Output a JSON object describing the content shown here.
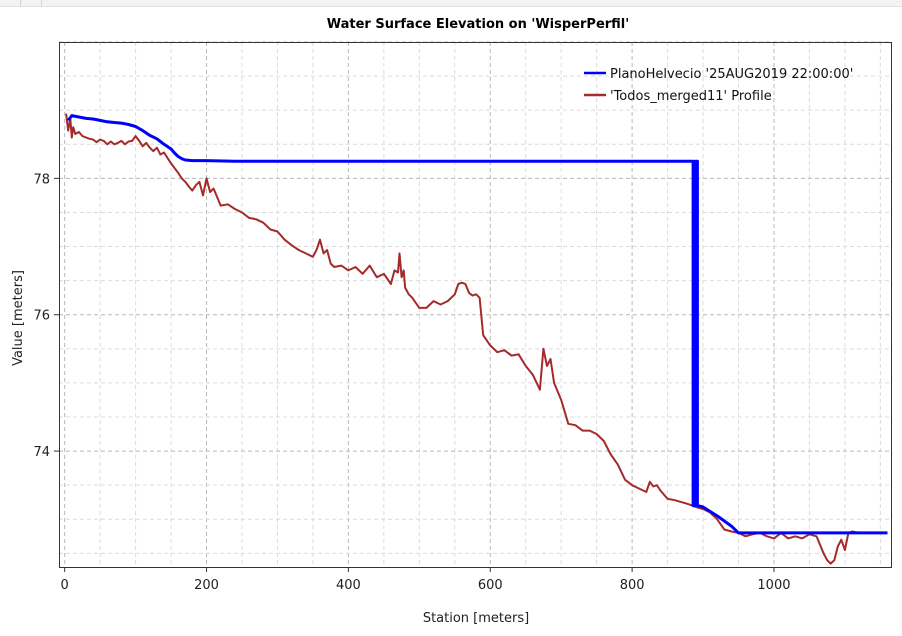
{
  "chart_data": {
    "type": "line",
    "title": "Water Surface Elevation on 'WisperPerfil'",
    "xlabel": "Station [meters]",
    "ylabel": "Value [meters]",
    "xlim": [
      -8,
      1165
    ],
    "ylim": [
      72.3,
      80.0
    ],
    "xticks": [
      0,
      200,
      400,
      600,
      800,
      1000
    ],
    "yticks": [
      74,
      76,
      78
    ],
    "grid": true,
    "legend_position": "top-right",
    "series": [
      {
        "name": "PlanoHelvecio '25AUG2019 22:00:00'",
        "color": "#0000ff",
        "x": [
          5,
          10,
          20,
          30,
          40,
          50,
          60,
          70,
          80,
          90,
          100,
          110,
          120,
          130,
          140,
          150,
          155,
          160,
          165,
          170,
          180,
          200,
          240,
          300,
          400,
          500,
          600,
          700,
          800,
          886,
          886,
          889,
          889,
          892,
          892,
          900,
          920,
          940,
          950,
          1000,
          1050,
          1100,
          1120,
          1160
        ],
        "y": [
          78.85,
          78.92,
          78.9,
          78.88,
          78.87,
          78.85,
          78.83,
          78.82,
          78.81,
          78.79,
          78.76,
          78.7,
          78.63,
          78.58,
          78.5,
          78.43,
          78.37,
          78.32,
          78.29,
          78.27,
          78.26,
          78.26,
          78.25,
          78.25,
          78.25,
          78.25,
          78.25,
          78.25,
          78.25,
          78.25,
          73.2,
          73.2,
          78.25,
          78.25,
          73.2,
          73.18,
          73.05,
          72.9,
          72.8,
          72.8,
          72.8,
          72.8,
          72.8,
          72.8
        ]
      },
      {
        "name": "'Todos_merged11' Profile",
        "color": "#a52a2a",
        "x": [
          2,
          5,
          8,
          10,
          12,
          15,
          20,
          25,
          30,
          35,
          40,
          45,
          50,
          55,
          60,
          65,
          70,
          75,
          80,
          85,
          90,
          95,
          100,
          105,
          110,
          115,
          120,
          125,
          130,
          135,
          140,
          145,
          150,
          155,
          160,
          165,
          170,
          175,
          180,
          185,
          190,
          195,
          200,
          205,
          210,
          220,
          230,
          240,
          250,
          260,
          270,
          280,
          290,
          300,
          310,
          320,
          330,
          340,
          350,
          355,
          360,
          365,
          370,
          375,
          380,
          390,
          400,
          410,
          420,
          430,
          440,
          450,
          460,
          465,
          470,
          472,
          475,
          478,
          480,
          485,
          490,
          500,
          510,
          520,
          530,
          540,
          550,
          555,
          560,
          565,
          570,
          575,
          580,
          585,
          590,
          600,
          610,
          620,
          630,
          640,
          650,
          660,
          670,
          675,
          680,
          685,
          690,
          700,
          710,
          720,
          730,
          740,
          750,
          760,
          770,
          780,
          790,
          800,
          810,
          820,
          825,
          830,
          835,
          840,
          850,
          860,
          870,
          880,
          890,
          900,
          910,
          920,
          930,
          940,
          950,
          960,
          970,
          980,
          990,
          1000,
          1010,
          1020,
          1030,
          1040,
          1050,
          1060,
          1070,
          1075,
          1080,
          1085,
          1090,
          1095,
          1100,
          1105,
          1110,
          1120,
          1130,
          1140,
          1150,
          1160
        ],
        "y": [
          78.95,
          78.7,
          78.88,
          78.6,
          78.75,
          78.65,
          78.68,
          78.62,
          78.6,
          78.58,
          78.57,
          78.53,
          78.57,
          78.55,
          78.5,
          78.54,
          78.5,
          78.52,
          78.55,
          78.5,
          78.54,
          78.55,
          78.62,
          78.55,
          78.47,
          78.52,
          78.45,
          78.4,
          78.45,
          78.35,
          78.38,
          78.3,
          78.22,
          78.15,
          78.08,
          78.0,
          77.95,
          77.88,
          77.82,
          77.9,
          77.95,
          77.75,
          78.0,
          77.8,
          77.85,
          77.6,
          77.62,
          77.55,
          77.5,
          77.42,
          77.4,
          77.35,
          77.25,
          77.22,
          77.1,
          77.02,
          76.95,
          76.9,
          76.85,
          76.95,
          77.1,
          76.9,
          76.95,
          76.75,
          76.7,
          76.72,
          76.65,
          76.7,
          76.6,
          76.72,
          76.55,
          76.6,
          76.45,
          76.65,
          76.62,
          76.9,
          76.55,
          76.65,
          76.4,
          76.3,
          76.25,
          76.1,
          76.1,
          76.2,
          76.15,
          76.2,
          76.3,
          76.45,
          76.47,
          76.45,
          76.32,
          76.28,
          76.3,
          76.25,
          75.7,
          75.55,
          75.45,
          75.48,
          75.4,
          75.42,
          75.25,
          75.12,
          74.9,
          75.5,
          75.25,
          75.35,
          75.0,
          74.75,
          74.4,
          74.38,
          74.3,
          74.3,
          74.25,
          74.15,
          73.95,
          73.8,
          73.58,
          73.5,
          73.45,
          73.4,
          73.55,
          73.48,
          73.5,
          73.42,
          73.3,
          73.28,
          73.25,
          73.22,
          73.18,
          73.15,
          73.1,
          73.0,
          72.85,
          72.82,
          72.8,
          72.75,
          72.78,
          72.8,
          72.75,
          72.72,
          72.8,
          72.72,
          72.75,
          72.72,
          72.78,
          72.75,
          72.5,
          72.4,
          72.35,
          72.4,
          72.6,
          72.7,
          72.55,
          72.8,
          72.82,
          72.8,
          72.8,
          72.8,
          72.8,
          72.8
        ]
      }
    ]
  }
}
